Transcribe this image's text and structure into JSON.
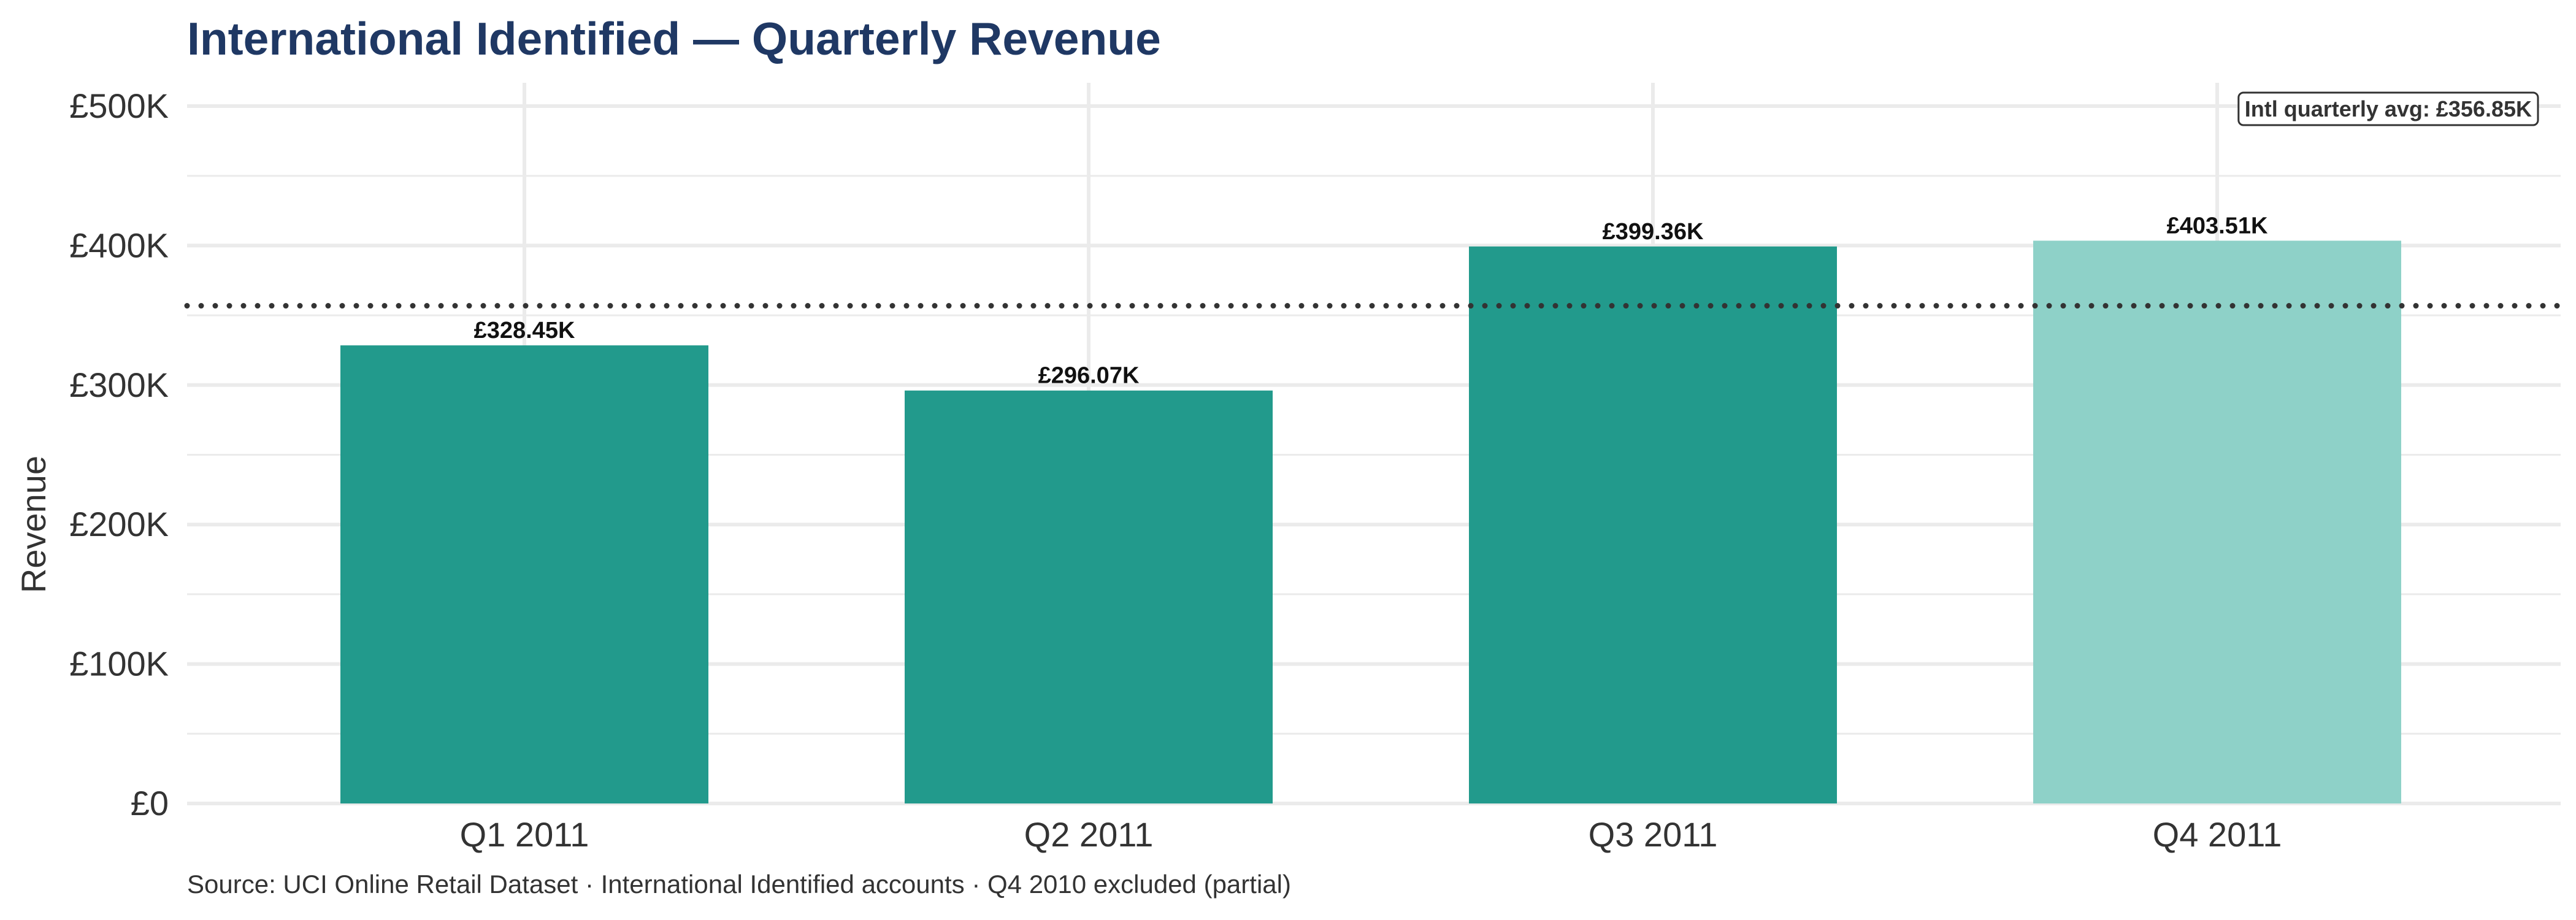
{
  "chart_data": {
    "type": "bar",
    "title": "International Identified — Quarterly Revenue",
    "xlabel": "",
    "ylabel": "Revenue",
    "categories": [
      "Q1 2011",
      "Q2 2011",
      "Q3 2011",
      "Q4 2011"
    ],
    "values": [
      328450,
      296070,
      399360,
      403510
    ],
    "value_labels": [
      "£328.45K",
      "£296.07K",
      "£399.36K",
      "£403.51K"
    ],
    "bar_colors": [
      "#229a8c",
      "#229a8c",
      "#229a8c",
      "#8ed1c8"
    ],
    "ylim": [
      0,
      500000
    ],
    "y_ticks": [
      0,
      100000,
      200000,
      300000,
      400000,
      500000
    ],
    "y_tick_labels": [
      "£0",
      "£100K",
      "£200K",
      "£300K",
      "£400K",
      "£500K"
    ],
    "reference_line": {
      "value": 356850,
      "style": "dotted",
      "color": "#333333",
      "label": "Intl quarterly avg: £356.85K"
    },
    "grid": true,
    "legend": "none",
    "caption": "Source: UCI Online Retail Dataset · International Identified accounts · Q4 2010 excluded (partial)"
  },
  "colors": {
    "title": "#1f3864",
    "grid": "#ebebeb",
    "axis_text": "#333333",
    "bar_label": "#111111"
  }
}
